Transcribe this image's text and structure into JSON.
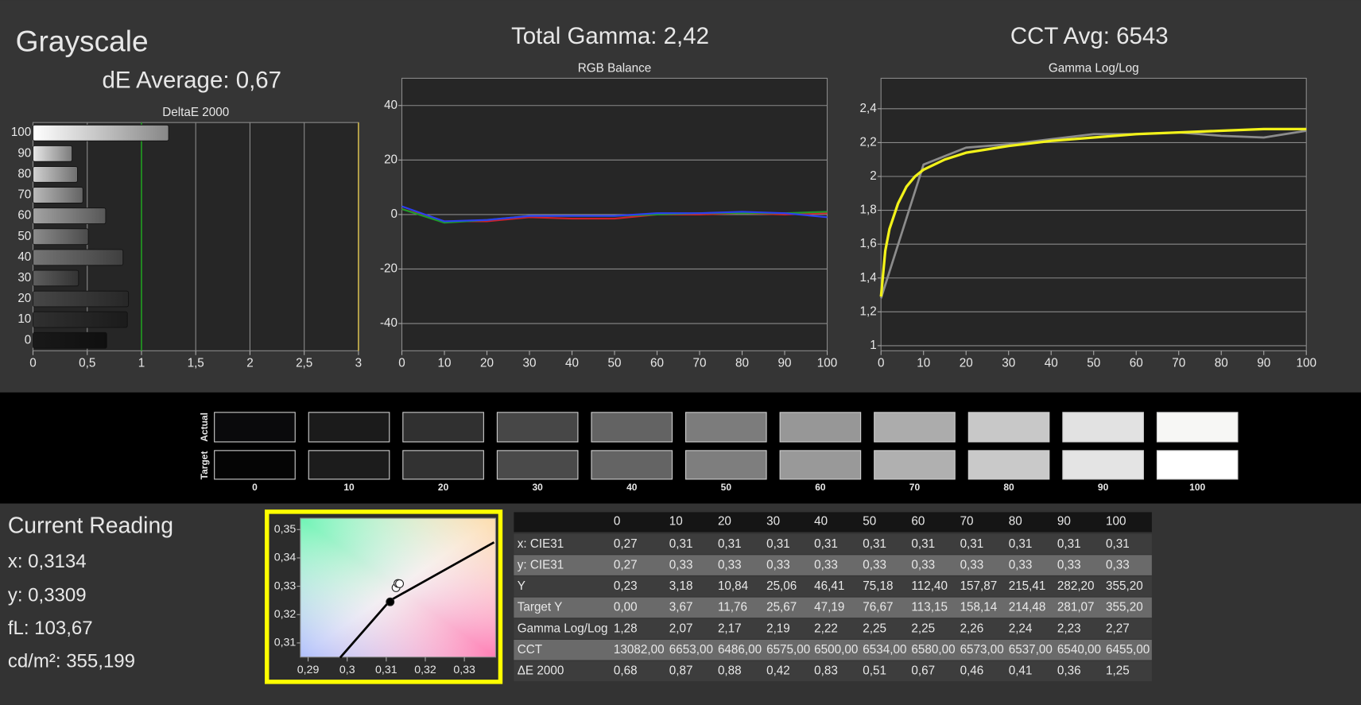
{
  "header": {
    "title": "Grayscale",
    "de_average": "dE Average: 0,67",
    "total_gamma": "Total Gamma: 2,42",
    "cct_avg": "CCT Avg: 6543"
  },
  "chart_data": [
    {
      "type": "bar",
      "orientation": "horizontal",
      "title": "DeltaE 2000",
      "categories": [
        "100",
        "90",
        "80",
        "70",
        "60",
        "50",
        "40",
        "30",
        "20",
        "10",
        "0"
      ],
      "values": [
        1.25,
        0.36,
        0.41,
        0.46,
        0.67,
        0.51,
        0.83,
        0.42,
        0.88,
        0.87,
        0.68
      ],
      "xlim": [
        0,
        3
      ],
      "xticks": [
        0,
        {
          "value": 0.5,
          "label": "0,5"
        },
        1,
        {
          "value": 1.5,
          "label": "1,5"
        },
        2,
        {
          "value": 2.5,
          "label": "2,5"
        },
        3
      ],
      "grid": "x",
      "thresholds": [
        {
          "value": 1,
          "color": "#1f9a1f"
        },
        {
          "value": 3,
          "color": "#c9b24a"
        }
      ]
    },
    {
      "type": "line",
      "title": "RGB Balance",
      "x": [
        0,
        10,
        20,
        30,
        40,
        50,
        60,
        70,
        80,
        90,
        100
      ],
      "series": [
        {
          "color": "#d0202a",
          "values": [
            2,
            -2.5,
            -2.5,
            -1,
            -1.5,
            -1.5,
            0,
            0,
            0.5,
            0,
            0.5
          ]
        },
        {
          "color": "#1f9a2a",
          "values": [
            2,
            -3,
            -2,
            -0.5,
            -0.5,
            -0.5,
            0,
            0.5,
            0.5,
            0.5,
            1
          ]
        },
        {
          "color": "#2b3ff0",
          "values": [
            3,
            -2.5,
            -2,
            -0.5,
            -0.5,
            -0.5,
            0.5,
            0.5,
            1,
            0.5,
            -1
          ]
        }
      ],
      "xlim": [
        0,
        100
      ],
      "ylim": [
        -50,
        50
      ],
      "xticks": [
        0,
        10,
        20,
        30,
        40,
        50,
        60,
        70,
        80,
        90,
        100
      ],
      "yticks": [
        -40,
        -20,
        0,
        20,
        40
      ],
      "grid": "y"
    },
    {
      "type": "line",
      "title": "Gamma Log/Log",
      "series": [
        {
          "color": "#8c8c8c",
          "x": [
            0,
            10,
            20,
            30,
            40,
            50,
            60,
            70,
            80,
            90,
            100
          ],
          "values": [
            1.28,
            2.07,
            2.17,
            2.19,
            2.22,
            2.25,
            2.25,
            2.26,
            2.24,
            2.23,
            2.27
          ]
        },
        {
          "color": "#f2f21a",
          "x": [
            0,
            1,
            2,
            4,
            6,
            8,
            10,
            15,
            20,
            30,
            40,
            50,
            60,
            70,
            80,
            90,
            100
          ],
          "values": [
            1.29,
            1.56,
            1.69,
            1.84,
            1.94,
            2.0,
            2.04,
            2.1,
            2.14,
            2.18,
            2.21,
            2.23,
            2.25,
            2.26,
            2.27,
            2.28,
            2.28
          ]
        }
      ],
      "xlim": [
        0,
        100
      ],
      "ylim": [
        0.97,
        2.58
      ],
      "xticks": [
        0,
        10,
        20,
        30,
        40,
        50,
        60,
        70,
        80,
        90,
        100
      ],
      "yticks": [
        1,
        {
          "value": 1.2,
          "label": "1,2"
        },
        {
          "value": 1.4,
          "label": "1,4"
        },
        {
          "value": 1.6,
          "label": "1,6"
        },
        {
          "value": 1.8,
          "label": "1,8"
        },
        2,
        {
          "value": 2.2,
          "label": "2,2"
        },
        {
          "value": 2.4,
          "label": "2,4"
        }
      ],
      "grid": "y"
    },
    {
      "type": "scatter",
      "series": [
        {
          "color": "#000000",
          "style": "line",
          "x": [
            0.2982,
            0.311,
            0.3376
          ],
          "values": [
            0.3048,
            0.325,
            0.3455
          ]
        },
        {
          "color": "#000000",
          "style": "marker",
          "x": [
            0.311
          ],
          "values": [
            0.3245
          ]
        },
        {
          "color": "#ffffff",
          "style": "marker",
          "x": [
            0.3125,
            0.313,
            0.3134
          ],
          "values": [
            0.3295,
            0.331,
            0.3309
          ]
        }
      ],
      "xlim": [
        0.288,
        0.338
      ],
      "ylim": [
        0.305,
        0.354
      ],
      "xticks": [
        {
          "value": 0.29,
          "label": "0,29"
        },
        {
          "value": 0.3,
          "label": "0,3"
        },
        {
          "value": 0.31,
          "label": "0,31"
        },
        {
          "value": 0.32,
          "label": "0,32"
        },
        {
          "value": 0.33,
          "label": "0,33"
        }
      ],
      "yticks": [
        {
          "value": 0.31,
          "label": "0,31"
        },
        {
          "value": 0.32,
          "label": "0,32"
        },
        {
          "value": 0.33,
          "label": "0,33"
        },
        {
          "value": 0.34,
          "label": "0,34"
        },
        {
          "value": 0.35,
          "label": "0,35"
        }
      ]
    }
  ],
  "swatches": {
    "row_labels": [
      "Actual",
      "Target"
    ],
    "labels": [
      "0",
      "10",
      "20",
      "30",
      "40",
      "50",
      "60",
      "70",
      "80",
      "90",
      "100"
    ],
    "actual_colors": [
      "#0a0a0c",
      "#1b1b1b",
      "#303030",
      "#474747",
      "#636363",
      "#7c7c7c",
      "#979797",
      "#acacac",
      "#c8c8c8",
      "#e2e2e2",
      "#f7f7f5"
    ],
    "target_colors": [
      "#050505",
      "#1c1c1c",
      "#323232",
      "#4a4a4a",
      "#646464",
      "#7e7e7e",
      "#999999",
      "#b0b0b0",
      "#c9c9c9",
      "#e4e4e4",
      "#ffffff"
    ]
  },
  "current_reading": {
    "title": "Current Reading",
    "lines": [
      "x: 0,3134",
      "y: 0,3309",
      "fL: 103,67",
      "cd/m²: 355,199"
    ]
  },
  "table": {
    "columns": [
      "0",
      "10",
      "20",
      "30",
      "40",
      "50",
      "60",
      "70",
      "80",
      "90",
      "100"
    ],
    "rows": [
      {
        "label": "x: CIE31",
        "cells": [
          "0,27",
          "0,31",
          "0,31",
          "0,31",
          "0,31",
          "0,31",
          "0,31",
          "0,31",
          "0,31",
          "0,31",
          "0,31"
        ]
      },
      {
        "label": "y: CIE31",
        "cells": [
          "0,27",
          "0,33",
          "0,33",
          "0,33",
          "0,33",
          "0,33",
          "0,33",
          "0,33",
          "0,33",
          "0,33",
          "0,33"
        ]
      },
      {
        "label": "Y",
        "cells": [
          "0,23",
          "3,18",
          "10,84",
          "25,06",
          "46,41",
          "75,18",
          "112,40",
          "157,87",
          "215,41",
          "282,20",
          "355,20"
        ]
      },
      {
        "label": "Target Y",
        "cells": [
          "0,00",
          "3,67",
          "11,76",
          "25,67",
          "47,19",
          "76,67",
          "113,15",
          "158,14",
          "214,48",
          "281,07",
          "355,20"
        ]
      },
      {
        "label": "Gamma Log/Log",
        "cells": [
          "1,28",
          "2,07",
          "2,17",
          "2,19",
          "2,22",
          "2,25",
          "2,25",
          "2,26",
          "2,24",
          "2,23",
          "2,27"
        ]
      },
      {
        "label": "CCT",
        "cells": [
          "13082,00",
          "6653,00",
          "6486,00",
          "6575,00",
          "6500,00",
          "6534,00",
          "6580,00",
          "6573,00",
          "6537,00",
          "6540,00",
          "6455,00"
        ]
      },
      {
        "label": "ΔE 2000",
        "cells": [
          "0,68",
          "0,87",
          "0,88",
          "0,42",
          "0,83",
          "0,51",
          "0,67",
          "0,46",
          "0,41",
          "0,36",
          "1,25"
        ]
      }
    ]
  }
}
